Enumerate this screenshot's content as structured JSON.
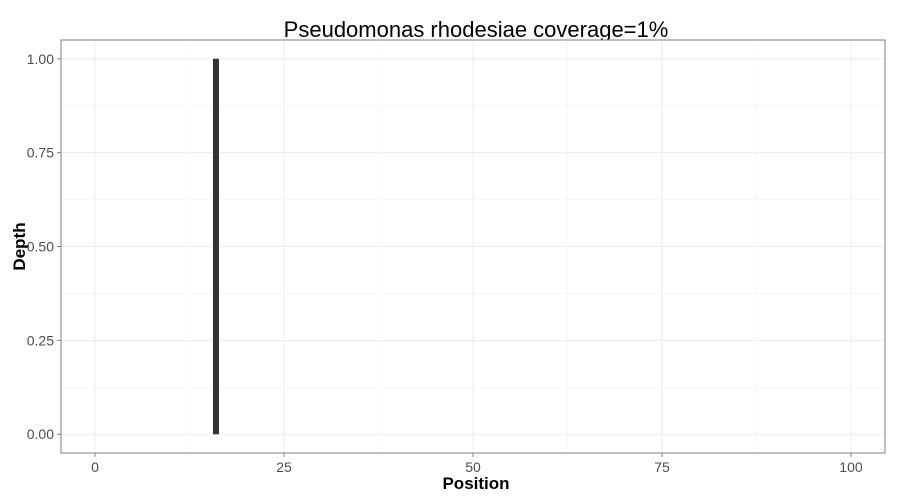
{
  "chart_data": {
    "type": "bar",
    "title": "Pseudomonas rhodesiae coverage=1%",
    "xlabel": "Position",
    "ylabel": "Depth",
    "xlim": [
      -4.5,
      104.5
    ],
    "ylim": [
      -0.05,
      1.05
    ],
    "xticks": [
      0,
      25,
      50,
      75,
      100
    ],
    "yticks": [
      0.0,
      0.25,
      0.5,
      0.75,
      1.0
    ],
    "xtick_labels": [
      "0",
      "25",
      "50",
      "75",
      "100"
    ],
    "ytick_labels": [
      "0.00",
      "0.25",
      "0.50",
      "0.75",
      "1.00"
    ],
    "grid": true,
    "legend": "none",
    "series": [
      {
        "points": [
          {
            "x": 16,
            "y": 1.0
          }
        ],
        "color": "#333333"
      }
    ]
  }
}
